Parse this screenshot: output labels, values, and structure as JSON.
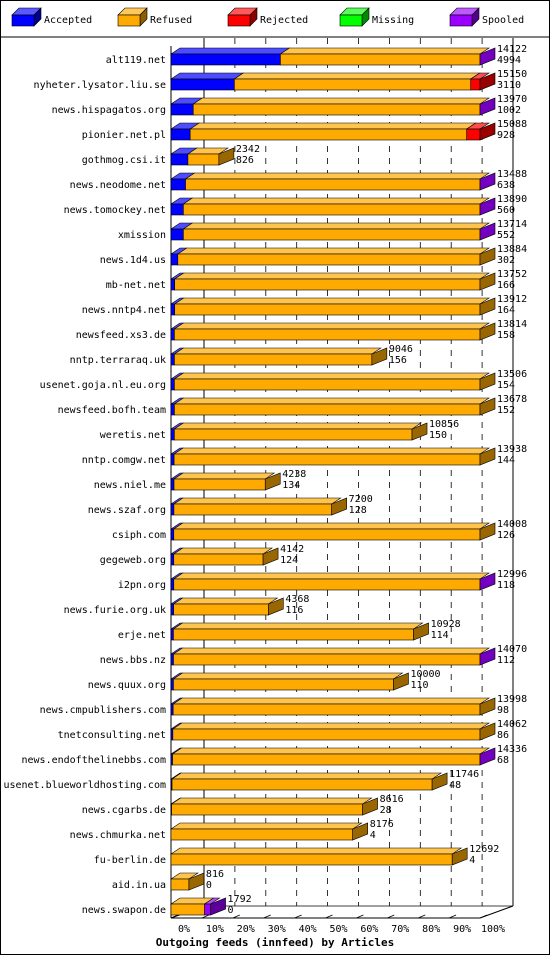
{
  "chart_data": {
    "type": "bar",
    "stacked": true,
    "orientation": "horizontal",
    "title": "",
    "xlabel": "Outgoing feeds (innfeed) by Articles",
    "ylabel": "",
    "xlim": [
      0,
      100
    ],
    "x_ticks": [
      "0%",
      "10%",
      "20%",
      "30%",
      "40%",
      "50%",
      "60%",
      "70%",
      "80%",
      "90%",
      "100%"
    ],
    "grid": "vertical dashed at tick positions",
    "legend_placement": "top",
    "series": [
      {
        "name": "Accepted",
        "color": "#0000ff"
      },
      {
        "name": "Refused",
        "color": "#ffaa00"
      },
      {
        "name": "Rejected",
        "color": "#ff0000"
      },
      {
        "name": "Missing",
        "color": "#00ff00"
      },
      {
        "name": "Spooled",
        "color": "#9900ff"
      }
    ],
    "rows": [
      {
        "name": "alt119.net",
        "total": "14122",
        "accepted": "4994",
        "scale_pct": 100,
        "pct": [
          35.4,
          64.6,
          0,
          0,
          0
        ],
        "spooled_tip": true
      },
      {
        "name": "nyheter.lysator.liu.se",
        "total": "15150",
        "accepted": "3110",
        "scale_pct": 100,
        "pct": [
          20.5,
          76.5,
          3.0,
          0,
          0
        ],
        "spooled_tip": false
      },
      {
        "name": "news.hispagatos.org",
        "total": "13970",
        "accepted": "1002",
        "scale_pct": 100,
        "pct": [
          7.2,
          92.8,
          0,
          0,
          0
        ],
        "spooled_tip": true
      },
      {
        "name": "pionier.net.pl",
        "total": "15088",
        "accepted": "928",
        "scale_pct": 100,
        "pct": [
          6.2,
          89.5,
          4.3,
          0,
          0
        ],
        "spooled_tip": false
      },
      {
        "name": "gothmog.csi.it",
        "total": "2342",
        "accepted": "826",
        "scale_pct": 15.5,
        "pct": [
          35.3,
          64.7,
          0,
          0,
          0
        ],
        "spooled_tip": false
      },
      {
        "name": "news.neodome.net",
        "total": "13488",
        "accepted": "638",
        "scale_pct": 100,
        "pct": [
          4.7,
          95.3,
          0,
          0,
          0
        ],
        "spooled_tip": true
      },
      {
        "name": "news.tomockey.net",
        "total": "13890",
        "accepted": "560",
        "scale_pct": 100,
        "pct": [
          4.0,
          96.0,
          0,
          0,
          0
        ],
        "spooled_tip": true
      },
      {
        "name": "xmission",
        "total": "13714",
        "accepted": "552",
        "scale_pct": 100,
        "pct": [
          4.0,
          96.0,
          0,
          0,
          0
        ],
        "spooled_tip": true
      },
      {
        "name": "news.1d4.us",
        "total": "13884",
        "accepted": "302",
        "scale_pct": 100,
        "pct": [
          2.2,
          97.8,
          0,
          0,
          0
        ],
        "spooled_tip": false
      },
      {
        "name": "mb-net.net",
        "total": "13752",
        "accepted": "166",
        "scale_pct": 100,
        "pct": [
          1.2,
          98.8,
          0,
          0,
          0
        ],
        "spooled_tip": false
      },
      {
        "name": "news.nntp4.net",
        "total": "13912",
        "accepted": "164",
        "scale_pct": 100,
        "pct": [
          1.2,
          98.8,
          0,
          0,
          0
        ],
        "spooled_tip": false
      },
      {
        "name": "newsfeed.xs3.de",
        "total": "13814",
        "accepted": "158",
        "scale_pct": 100,
        "pct": [
          1.1,
          98.9,
          0,
          0,
          0
        ],
        "spooled_tip": false
      },
      {
        "name": "nntp.terraraq.uk",
        "total": "9046",
        "accepted": "156",
        "scale_pct": 65,
        "pct": [
          1.7,
          98.3,
          0,
          0,
          0
        ],
        "spooled_tip": false
      },
      {
        "name": "usenet.goja.nl.eu.org",
        "total": "13506",
        "accepted": "154",
        "scale_pct": 100,
        "pct": [
          1.1,
          98.9,
          0,
          0,
          0
        ],
        "spooled_tip": false
      },
      {
        "name": "newsfeed.bofh.team",
        "total": "13678",
        "accepted": "152",
        "scale_pct": 100,
        "pct": [
          1.1,
          98.9,
          0,
          0,
          0
        ],
        "spooled_tip": false
      },
      {
        "name": "weretis.net",
        "total": "10856",
        "accepted": "150",
        "scale_pct": 78,
        "pct": [
          1.4,
          98.6,
          0,
          0,
          0
        ],
        "spooled_tip": false
      },
      {
        "name": "nntp.comgw.net",
        "total": "13938",
        "accepted": "144",
        "scale_pct": 100,
        "pct": [
          1.0,
          99.0,
          0,
          0,
          0
        ],
        "spooled_tip": false
      },
      {
        "name": "news.niel.me",
        "total": "4238",
        "accepted": "134",
        "scale_pct": 30.5,
        "pct": [
          3.2,
          96.8,
          0,
          0,
          0
        ],
        "spooled_tip": false
      },
      {
        "name": "news.szaf.org",
        "total": "7200",
        "accepted": "128",
        "scale_pct": 52,
        "pct": [
          1.8,
          98.2,
          0,
          0,
          0
        ],
        "spooled_tip": false
      },
      {
        "name": "csiph.com",
        "total": "14008",
        "accepted": "126",
        "scale_pct": 100,
        "pct": [
          0.9,
          99.1,
          0,
          0,
          0
        ],
        "spooled_tip": false
      },
      {
        "name": "gegeweb.org",
        "total": "4142",
        "accepted": "124",
        "scale_pct": 29.8,
        "pct": [
          3.0,
          97.0,
          0,
          0,
          0
        ],
        "spooled_tip": false
      },
      {
        "name": "i2pn.org",
        "total": "12996",
        "accepted": "118",
        "scale_pct": 100,
        "pct": [
          0.9,
          99.1,
          0,
          0,
          0
        ],
        "spooled_tip": true
      },
      {
        "name": "news.furie.org.uk",
        "total": "4368",
        "accepted": "116",
        "scale_pct": 31.5,
        "pct": [
          2.7,
          97.3,
          0,
          0,
          0
        ],
        "spooled_tip": false
      },
      {
        "name": "erje.net",
        "total": "10928",
        "accepted": "114",
        "scale_pct": 78.5,
        "pct": [
          1.0,
          99.0,
          0,
          0,
          0
        ],
        "spooled_tip": false
      },
      {
        "name": "news.bbs.nz",
        "total": "14070",
        "accepted": "112",
        "scale_pct": 100,
        "pct": [
          0.8,
          99.2,
          0,
          0,
          0
        ],
        "spooled_tip": true
      },
      {
        "name": "news.quux.org",
        "total": "10000",
        "accepted": "110",
        "scale_pct": 72,
        "pct": [
          1.1,
          98.9,
          0,
          0,
          0
        ],
        "spooled_tip": false
      },
      {
        "name": "news.cmpublishers.com",
        "total": "13998",
        "accepted": "98",
        "scale_pct": 100,
        "pct": [
          0.7,
          99.3,
          0,
          0,
          0
        ],
        "spooled_tip": false
      },
      {
        "name": "tnetconsulting.net",
        "total": "14062",
        "accepted": "86",
        "scale_pct": 100,
        "pct": [
          0.6,
          99.4,
          0,
          0,
          0
        ],
        "spooled_tip": false
      },
      {
        "name": "news.endofthelinebbs.com",
        "total": "14336",
        "accepted": "68",
        "scale_pct": 100,
        "pct": [
          0.5,
          99.5,
          0,
          0,
          0
        ],
        "spooled_tip": true
      },
      {
        "name": "usenet.blueworldhosting.com",
        "total": "11746",
        "accepted": "48",
        "scale_pct": 84.5,
        "pct": [
          0.4,
          99.6,
          0,
          0,
          0
        ],
        "spooled_tip": false
      },
      {
        "name": "news.cgarbs.de",
        "total": "8616",
        "accepted": "28",
        "scale_pct": 62,
        "pct": [
          0.3,
          99.7,
          0,
          0,
          0
        ],
        "spooled_tip": false
      },
      {
        "name": "news.chmurka.net",
        "total": "8176",
        "accepted": "4",
        "scale_pct": 58.8,
        "pct": [
          0,
          100,
          0,
          0,
          0
        ],
        "spooled_tip": false
      },
      {
        "name": "fu-berlin.de",
        "total": "12692",
        "accepted": "4",
        "scale_pct": 91,
        "pct": [
          0,
          100,
          0,
          0,
          0
        ],
        "spooled_tip": false
      },
      {
        "name": "aid.in.ua",
        "total": "816",
        "accepted": "0",
        "scale_pct": 5.8,
        "pct": [
          0,
          100,
          0,
          0,
          0
        ],
        "spooled_tip": false
      },
      {
        "name": "news.swapon.de",
        "total": "1792",
        "accepted": "0",
        "scale_pct": 12.8,
        "pct": [
          0,
          85,
          0,
          0,
          15
        ],
        "spooled_tip": false
      }
    ]
  }
}
